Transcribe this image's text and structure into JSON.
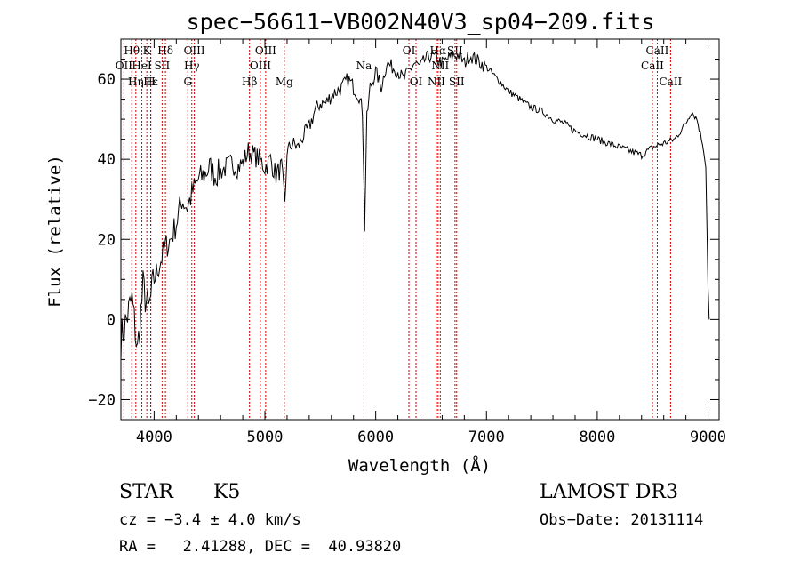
{
  "chart_data": {
    "type": "line",
    "title": "spec−56611−VB002N40V3_sp04−209.fits",
    "xlabel": "Wavelength (Å)",
    "ylabel": "Flux (relative)",
    "xlim": [
      3700,
      9100
    ],
    "ylim": [
      -25,
      70
    ],
    "xticks": [
      4000,
      5000,
      6000,
      7000,
      8000,
      9000
    ],
    "yticks": [
      -20,
      0,
      20,
      40,
      60
    ],
    "ytick_labels": [
      "−20",
      "0",
      "20",
      "40",
      "60"
    ],
    "series": [
      {
        "name": "flux",
        "x": [
          3700,
          3750,
          3800,
          3850,
          3900,
          3950,
          4000,
          4050,
          4100,
          4150,
          4200,
          4250,
          4300,
          4350,
          4400,
          4450,
          4500,
          4550,
          4600,
          4650,
          4700,
          4750,
          4800,
          4850,
          4900,
          4950,
          5000,
          5050,
          5100,
          5150,
          5180,
          5200,
          5250,
          5300,
          5350,
          5400,
          5450,
          5500,
          5550,
          5600,
          5650,
          5700,
          5750,
          5800,
          5850,
          5880,
          5890,
          5900,
          5920,
          5950,
          6000,
          6050,
          6100,
          6150,
          6200,
          6250,
          6300,
          6350,
          6400,
          6450,
          6500,
          6550,
          6600,
          6650,
          6700,
          6750,
          6800,
          6850,
          6900,
          6950,
          7000,
          7100,
          7200,
          7300,
          7400,
          7500,
          7600,
          7700,
          7800,
          7900,
          8000,
          8100,
          8200,
          8300,
          8400,
          8500,
          8600,
          8700,
          8800,
          8850,
          8900,
          8950,
          8980,
          9000,
          9010
        ],
        "y": [
          -5,
          0,
          5,
          -8,
          8,
          2,
          10,
          14,
          18,
          20,
          24,
          30,
          28,
          32,
          35,
          36,
          38,
          36,
          37,
          38,
          39,
          38,
          39,
          42,
          41,
          40,
          38,
          40,
          36,
          38,
          28,
          42,
          44,
          43,
          46,
          48,
          52,
          54,
          54,
          56,
          57,
          58,
          60,
          58,
          56,
          52,
          40,
          23,
          50,
          58,
          62,
          58,
          64,
          63,
          62,
          60,
          62,
          64,
          63,
          65,
          66,
          65,
          64,
          65,
          66,
          66,
          64,
          66,
          65,
          64,
          63,
          60,
          57,
          55,
          53,
          52,
          50,
          49,
          47,
          46,
          45,
          44,
          43,
          42,
          41,
          43,
          44,
          45,
          49,
          52,
          50,
          44,
          38,
          8,
          0
        ]
      }
    ],
    "emission_lines": [
      {
        "label": "Hθ",
        "x": 3798,
        "row": 0
      },
      {
        "label": "OII",
        "x": 3727,
        "row": 1
      },
      {
        "label": "Hη",
        "x": 3835,
        "row": 2
      },
      {
        "label": "K",
        "x": 3934,
        "row": 0
      },
      {
        "label": "HeI",
        "x": 3889,
        "row": 1
      },
      {
        "label": "Hε",
        "x": 3970,
        "row": 2
      },
      {
        "label": "H",
        "x": 3969,
        "row": 2
      },
      {
        "label": "Hδ",
        "x": 4102,
        "row": 0
      },
      {
        "label": "SII",
        "x": 4072,
        "row": 1
      },
      {
        "label": "OIII",
        "x": 4363,
        "row": 0
      },
      {
        "label": "Hγ",
        "x": 4340,
        "row": 1
      },
      {
        "label": "G",
        "x": 4304,
        "row": 2
      },
      {
        "label": "Hβ",
        "x": 4861,
        "row": 2
      },
      {
        "label": "OIII",
        "x": 5007,
        "row": 0
      },
      {
        "label": "OIII",
        "x": 4959,
        "row": 1
      },
      {
        "label": "Mg",
        "x": 5175,
        "row": 2
      },
      {
        "label": "Na",
        "x": 5894,
        "row": 1
      },
      {
        "label": "OI",
        "x": 6300,
        "row": 0
      },
      {
        "label": "OI",
        "x": 6364,
        "row": 2
      },
      {
        "label": "Hα",
        "x": 6563,
        "row": 0
      },
      {
        "label": "SII",
        "x": 6716,
        "row": 0
      },
      {
        "label": "NII",
        "x": 6548,
        "row": 2
      },
      {
        "label": "NII",
        "x": 6583,
        "row": 1
      },
      {
        "label": "SII",
        "x": 6731,
        "row": 2
      },
      {
        "label": "CaII",
        "x": 8542,
        "row": 0
      },
      {
        "label": "CaII",
        "x": 8498,
        "row": 1
      },
      {
        "label": "CaII",
        "x": 8662,
        "row": 2
      }
    ],
    "line_color": "#cc0000"
  },
  "info": {
    "class": "STAR",
    "subclass": "K5",
    "survey": "LAMOST DR3",
    "cz": "cz = −3.4 ± 4.0 km/s",
    "obs_date": "Obs−Date: 20131114",
    "coords": "RA =   2.41288, DEC =  40.93820"
  }
}
